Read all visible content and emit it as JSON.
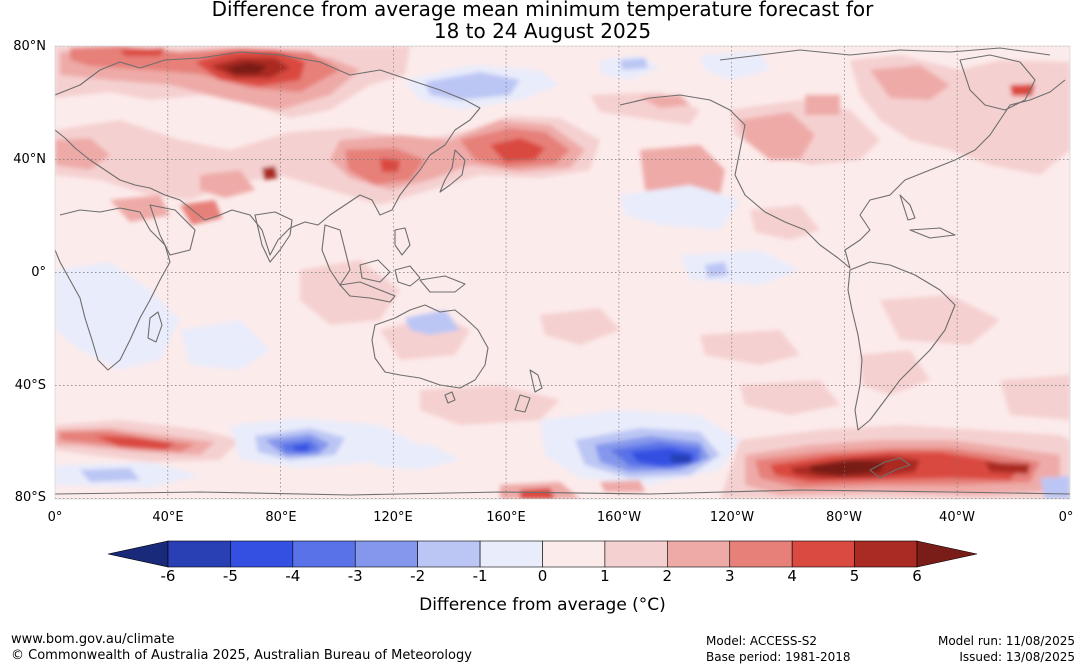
{
  "title_line1": "Difference from average mean minimum temperature forecast for",
  "title_line2": "18 to 24 August 2025",
  "map": {
    "lat_labels": [
      "80°N",
      "40°N",
      "0°",
      "40°S",
      "80°S"
    ],
    "lon_labels": [
      "0°",
      "40°E",
      "80°E",
      "120°E",
      "160°E",
      "160°W",
      "120°W",
      "80°W",
      "40°W",
      "0°"
    ],
    "land_outline_color": "#6e6e6e",
    "grid_color": "#777777"
  },
  "colorbar": {
    "label": "Difference from average (°C)",
    "ticks": [
      "-6",
      "-5",
      "-4",
      "-3",
      "-2",
      "-1",
      "0",
      "1",
      "2",
      "3",
      "4",
      "5",
      "6"
    ],
    "colors": [
      "#1a2a7a",
      "#2840b4",
      "#3350e2",
      "#5a72e8",
      "#8497ec",
      "#bcc6f4",
      "#e9ecfb",
      "#fcebeb",
      "#f5d0d0",
      "#eeaaa7",
      "#e68079",
      "#da4a40",
      "#aa2a24",
      "#7a1c18"
    ]
  },
  "footer": {
    "url": "www.bom.gov.au/climate",
    "copyright": "© Commonwealth of Australia 2025, Australian Bureau of Meteorology",
    "model": "Model: ACCESS-S2",
    "base_period": "Base period: 1981-2018",
    "model_run": "Model run: 11/08/2025",
    "issued": "Issued: 13/08/2025"
  }
}
